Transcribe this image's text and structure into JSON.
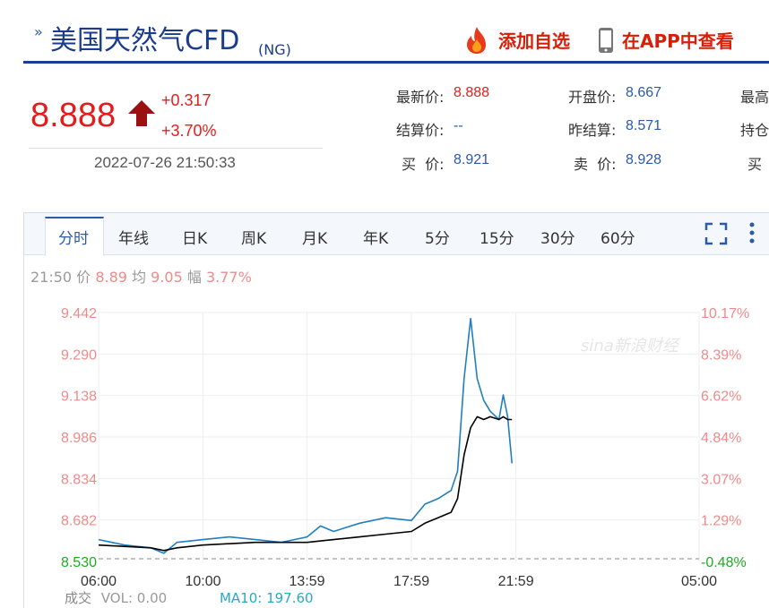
{
  "header": {
    "title": "美国天然气CFD",
    "code": "(NG)",
    "add_watchlist": "添加自选",
    "view_in_app": "在APP中查看"
  },
  "quote": {
    "price": "8.888",
    "change": "+0.317",
    "change_pct": "+3.70%",
    "timestamp": "2022-07-26 21:50:33",
    "rows": [
      [
        {
          "label": "最新价:",
          "value": "8.888",
          "color": "#e41c1c"
        },
        {
          "label": "开盘价:",
          "value": "8.667",
          "color": "#2a5aa8"
        },
        {
          "label": "最高",
          "value": ""
        }
      ],
      [
        {
          "label": "结算价:",
          "value": "--",
          "color": "#2a5aa8"
        },
        {
          "label": "昨结算:",
          "value": "8.571",
          "color": "#2a5aa8"
        },
        {
          "label": "持仓",
          "value": ""
        }
      ],
      [
        {
          "label": "买  价:",
          "value": "8.921",
          "color": "#2a5aa8"
        },
        {
          "label": "卖  价:",
          "value": "8.928",
          "color": "#2a5aa8"
        },
        {
          "label": "买",
          "value": ""
        }
      ]
    ]
  },
  "tabs": [
    "分时",
    "年线",
    "日K",
    "周K",
    "月K",
    "年K",
    "5分",
    "15分",
    "30分",
    "60分"
  ],
  "info_row": {
    "time": "21:50",
    "price_label": "价",
    "price": "8.89",
    "avg_label": "均",
    "avg": "9.05",
    "amp_label": "幅",
    "amp": "3.77%"
  },
  "volume": {
    "label": "成交",
    "vol": "VOL: 0.00",
    "ma10": "MA10: 197.60"
  },
  "watermark": "sina新浪财经",
  "colors": {
    "brand_blue": "#1b3f8f",
    "up_red": "#e41c1c",
    "action_red": "#d81e06",
    "price_line": "#1f7fc0",
    "avg_line": "#000000",
    "pct_axis": "#f08a8a",
    "base_green": "#22aa22",
    "vol_cyan": "#27a9c9"
  },
  "icons": [
    "chevrons-icon",
    "fire-icon",
    "phone-icon",
    "up-arrow-icon",
    "fullscreen-icon",
    "more-vertical-icon"
  ],
  "chart_data": {
    "type": "line",
    "xlabels": [
      "06:00",
      "10:00",
      "13:59",
      "17:59",
      "21:59",
      "05:00"
    ],
    "y_ticks": [
      "9.442",
      "9.290",
      "9.138",
      "8.986",
      "8.834",
      "8.682",
      "8.530"
    ],
    "pct_ticks": [
      "10.17%",
      "8.39%",
      "6.62%",
      "4.84%",
      "3.07%",
      "1.29%",
      "-0.48%"
    ],
    "ylim": [
      8.53,
      9.442
    ],
    "prev_settle": 8.571,
    "series": [
      {
        "name": "价",
        "x": [
          "06:00",
          "07:00",
          "08:00",
          "08:30",
          "09:00",
          "10:00",
          "11:00",
          "12:00",
          "13:00",
          "13:59",
          "14:30",
          "15:00",
          "16:00",
          "17:00",
          "17:59",
          "18:30",
          "19:00",
          "19:30",
          "19:45",
          "20:00",
          "20:15",
          "20:30",
          "20:45",
          "21:00",
          "21:20",
          "21:30",
          "21:40",
          "21:50"
        ],
        "values": [
          8.61,
          8.59,
          8.58,
          8.56,
          8.6,
          8.61,
          8.62,
          8.61,
          8.6,
          8.62,
          8.66,
          8.64,
          8.67,
          8.69,
          8.68,
          8.74,
          8.76,
          8.79,
          8.86,
          9.2,
          9.42,
          9.2,
          9.12,
          9.08,
          9.05,
          9.14,
          9.06,
          8.89
        ]
      },
      {
        "name": "均",
        "x": [
          "06:00",
          "08:00",
          "08:30",
          "09:00",
          "10:00",
          "12:00",
          "13:59",
          "15:00",
          "16:00",
          "17:00",
          "17:59",
          "18:30",
          "19:00",
          "19:30",
          "19:45",
          "20:00",
          "20:15",
          "20:30",
          "20:45",
          "21:00",
          "21:20",
          "21:30",
          "21:40",
          "21:50"
        ],
        "values": [
          8.59,
          8.58,
          8.57,
          8.58,
          8.59,
          8.6,
          8.6,
          8.61,
          8.62,
          8.63,
          8.64,
          8.67,
          8.69,
          8.71,
          8.76,
          8.92,
          9.02,
          9.06,
          9.05,
          9.06,
          9.05,
          9.06,
          9.05,
          9.05
        ]
      }
    ]
  }
}
